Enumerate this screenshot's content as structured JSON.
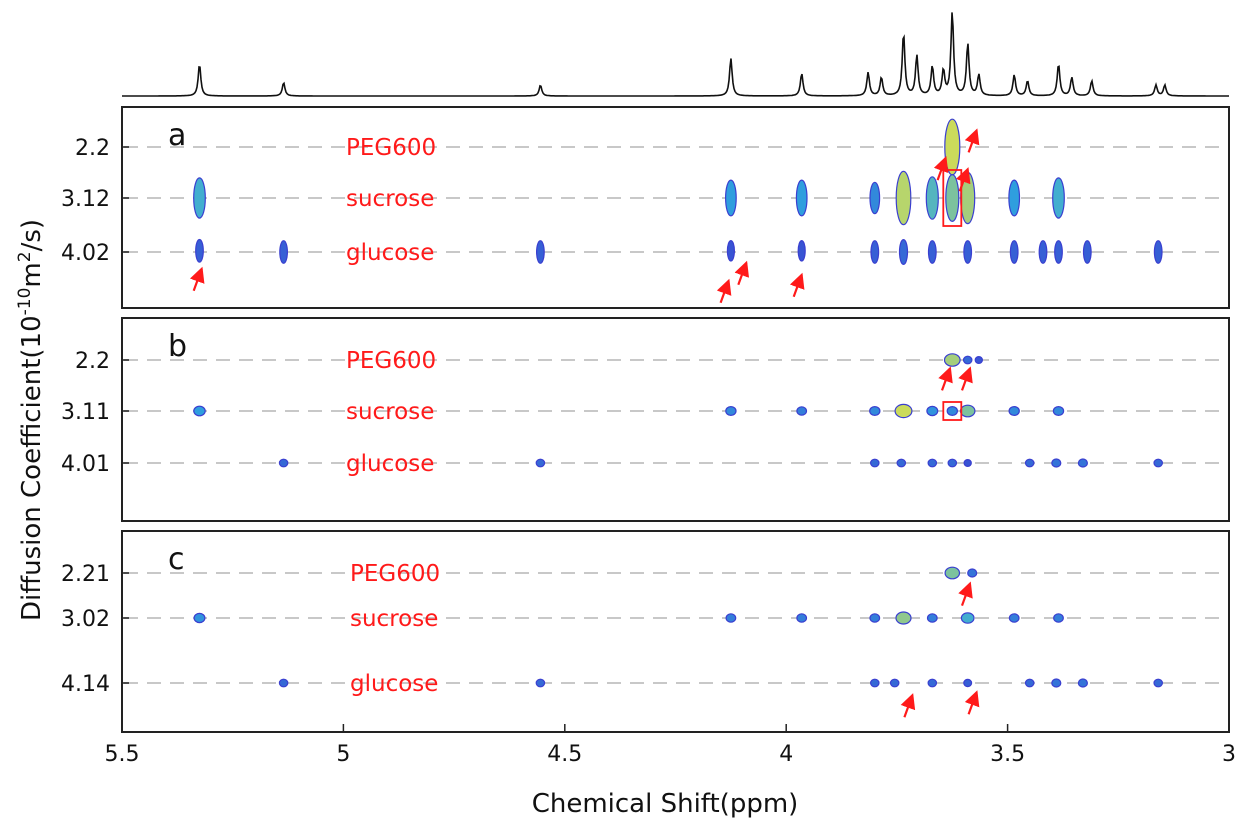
{
  "chart_data": {
    "type": "scatter",
    "subtype": "2D DOSY contour map with 1D spectrum projection",
    "xlabel": "Chemical Shift(ppm)",
    "ylabel_prefix": "Diffusion Coefficient(10",
    "ylabel_exp1": "-10",
    "ylabel_mid": "m",
    "ylabel_exp2": "2",
    "ylabel_suffix": "/s)",
    "x_reversed": true,
    "xlim": [
      5.5,
      3.0
    ],
    "x_ticks": [
      5.5,
      5.0,
      4.5,
      4.0,
      3.5,
      3.0
    ],
    "x_tick_labels": [
      "5.5",
      "5",
      "4.5",
      "4",
      "3.5",
      "3"
    ],
    "colors": {
      "spot_low": "#3a3fd0",
      "spot_mid": "#2ea8e0",
      "spot_high": "#f2e83a",
      "annotation": "#ff1a1a",
      "gridline": "#c8c8c8"
    },
    "spectrum_peaks": [
      {
        "x": 5.325,
        "height": 0.38
      },
      {
        "x": 5.135,
        "height": 0.16
      },
      {
        "x": 4.555,
        "height": 0.13
      },
      {
        "x": 4.125,
        "height": 0.45
      },
      {
        "x": 3.965,
        "height": 0.27
      },
      {
        "x": 3.815,
        "height": 0.28
      },
      {
        "x": 3.785,
        "height": 0.22
      },
      {
        "x": 3.735,
        "height": 0.75
      },
      {
        "x": 3.705,
        "height": 0.48
      },
      {
        "x": 3.67,
        "height": 0.35
      },
      {
        "x": 3.645,
        "height": 0.3
      },
      {
        "x": 3.625,
        "height": 1.0
      },
      {
        "x": 3.59,
        "height": 0.62
      },
      {
        "x": 3.565,
        "height": 0.25
      },
      {
        "x": 3.485,
        "height": 0.25
      },
      {
        "x": 3.455,
        "height": 0.18
      },
      {
        "x": 3.385,
        "height": 0.38
      },
      {
        "x": 3.355,
        "height": 0.22
      },
      {
        "x": 3.31,
        "height": 0.18
      },
      {
        "x": 3.165,
        "height": 0.13
      },
      {
        "x": 3.145,
        "height": 0.13
      }
    ],
    "panels": [
      {
        "label": "a",
        "y_ticks": [
          2.2,
          3.12,
          4.02
        ],
        "y_tick_labels": [
          "2.2",
          "3.12",
          "4.02"
        ],
        "components": [
          {
            "name": "PEG600",
            "D": 2.2
          },
          {
            "name": "sucrose",
            "D": 3.12
          },
          {
            "name": "glucose",
            "D": 4.02
          }
        ],
        "spots": [
          {
            "x": 5.325,
            "D": 3.12,
            "intensity": 0.55
          },
          {
            "x": 5.325,
            "D": 4.0,
            "intensity": 0.15
          },
          {
            "x": 5.135,
            "D": 4.02,
            "intensity": 0.15
          },
          {
            "x": 4.555,
            "D": 4.02,
            "intensity": 0.15
          },
          {
            "x": 4.125,
            "D": 3.12,
            "intensity": 0.45
          },
          {
            "x": 4.125,
            "D": 4.0,
            "intensity": 0.1
          },
          {
            "x": 3.965,
            "D": 3.12,
            "intensity": 0.45
          },
          {
            "x": 3.965,
            "D": 4.0,
            "intensity": 0.1
          },
          {
            "x": 3.8,
            "D": 3.12,
            "intensity": 0.35
          },
          {
            "x": 3.8,
            "D": 4.02,
            "intensity": 0.15
          },
          {
            "x": 3.735,
            "D": 3.12,
            "intensity": 0.85
          },
          {
            "x": 3.735,
            "D": 4.02,
            "intensity": 0.2
          },
          {
            "x": 3.67,
            "D": 3.12,
            "intensity": 0.6
          },
          {
            "x": 3.67,
            "D": 4.02,
            "intensity": 0.15
          },
          {
            "x": 3.625,
            "D": 2.2,
            "intensity": 0.9
          },
          {
            "x": 3.625,
            "D": 3.12,
            "intensity": 0.7
          },
          {
            "x": 3.59,
            "D": 3.12,
            "intensity": 0.8
          },
          {
            "x": 3.59,
            "D": 4.02,
            "intensity": 0.15
          },
          {
            "x": 3.485,
            "D": 3.12,
            "intensity": 0.45
          },
          {
            "x": 3.485,
            "D": 4.02,
            "intensity": 0.15
          },
          {
            "x": 3.42,
            "D": 4.02,
            "intensity": 0.15
          },
          {
            "x": 3.385,
            "D": 3.12,
            "intensity": 0.55
          },
          {
            "x": 3.385,
            "D": 4.02,
            "intensity": 0.15
          },
          {
            "x": 3.32,
            "D": 4.02,
            "intensity": 0.15
          },
          {
            "x": 3.16,
            "D": 4.02,
            "intensity": 0.15
          }
        ],
        "annotations": [
          {
            "type": "box",
            "x": 3.625,
            "D": 3.12
          },
          {
            "type": "arrow",
            "x": 5.32,
            "D": 4.3
          },
          {
            "type": "arrow",
            "x": 4.13,
            "D": 4.5
          },
          {
            "type": "arrow",
            "x": 4.09,
            "D": 4.2
          },
          {
            "type": "arrow",
            "x": 3.965,
            "D": 4.4
          },
          {
            "type": "arrow",
            "x": 3.64,
            "D": 2.4
          },
          {
            "type": "arrow",
            "x": 3.59,
            "D": 2.6
          },
          {
            "type": "arrow",
            "x": 3.57,
            "D": 1.9
          }
        ]
      },
      {
        "label": "b",
        "y_ticks": [
          2.2,
          3.11,
          4.01
        ],
        "y_tick_labels": [
          "2.2",
          "3.11",
          "4.01"
        ],
        "components": [
          {
            "name": "PEG600",
            "D": 2.2
          },
          {
            "name": "sucrose",
            "D": 3.11
          },
          {
            "name": "glucose",
            "D": 4.01
          }
        ],
        "spots": [
          {
            "x": 3.625,
            "D": 2.2,
            "intensity": 0.8
          },
          {
            "x": 3.59,
            "D": 2.2,
            "intensity": 0.2
          },
          {
            "x": 3.565,
            "D": 2.2,
            "intensity": 0.1
          },
          {
            "x": 5.325,
            "D": 3.11,
            "intensity": 0.45
          },
          {
            "x": 4.125,
            "D": 3.11,
            "intensity": 0.35
          },
          {
            "x": 3.965,
            "D": 3.11,
            "intensity": 0.3
          },
          {
            "x": 3.8,
            "D": 3.11,
            "intensity": 0.35
          },
          {
            "x": 3.735,
            "D": 3.11,
            "intensity": 0.9
          },
          {
            "x": 3.67,
            "D": 3.11,
            "intensity": 0.4
          },
          {
            "x": 3.625,
            "D": 3.11,
            "intensity": 0.35
          },
          {
            "x": 3.59,
            "D": 3.11,
            "intensity": 0.7
          },
          {
            "x": 3.485,
            "D": 3.11,
            "intensity": 0.35
          },
          {
            "x": 3.385,
            "D": 3.11,
            "intensity": 0.35
          },
          {
            "x": 5.135,
            "D": 4.01,
            "intensity": 0.2
          },
          {
            "x": 4.555,
            "D": 4.01,
            "intensity": 0.2
          },
          {
            "x": 3.8,
            "D": 4.01,
            "intensity": 0.2
          },
          {
            "x": 3.74,
            "D": 4.01,
            "intensity": 0.2
          },
          {
            "x": 3.67,
            "D": 4.01,
            "intensity": 0.2
          },
          {
            "x": 3.625,
            "D": 4.01,
            "intensity": 0.2
          },
          {
            "x": 3.59,
            "D": 4.01,
            "intensity": 0.1
          },
          {
            "x": 3.45,
            "D": 4.01,
            "intensity": 0.2
          },
          {
            "x": 3.39,
            "D": 4.01,
            "intensity": 0.25
          },
          {
            "x": 3.33,
            "D": 4.01,
            "intensity": 0.25
          },
          {
            "x": 3.16,
            "D": 4.01,
            "intensity": 0.2
          }
        ],
        "annotations": [
          {
            "type": "box",
            "x": 3.625,
            "D": 3.11
          },
          {
            "type": "arrow",
            "x": 3.63,
            "D": 2.35
          },
          {
            "type": "arrow",
            "x": 3.585,
            "D": 2.35
          }
        ]
      },
      {
        "label": "c",
        "y_ticks": [
          2.21,
          3.02,
          4.14
        ],
        "y_tick_labels": [
          "2.21",
          "3.02",
          "4.14"
        ],
        "components": [
          {
            "name": "PEG600",
            "D": 2.21
          },
          {
            "name": "sucrose",
            "D": 3.02
          },
          {
            "name": "glucose",
            "D": 4.14
          }
        ],
        "spots": [
          {
            "x": 3.625,
            "D": 2.21,
            "intensity": 0.7
          },
          {
            "x": 3.58,
            "D": 2.21,
            "intensity": 0.25
          },
          {
            "x": 5.325,
            "D": 3.02,
            "intensity": 0.4
          },
          {
            "x": 4.125,
            "D": 3.02,
            "intensity": 0.3
          },
          {
            "x": 3.965,
            "D": 3.02,
            "intensity": 0.3
          },
          {
            "x": 3.8,
            "D": 3.02,
            "intensity": 0.3
          },
          {
            "x": 3.735,
            "D": 3.02,
            "intensity": 0.75
          },
          {
            "x": 3.67,
            "D": 3.02,
            "intensity": 0.3
          },
          {
            "x": 3.59,
            "D": 3.02,
            "intensity": 0.55
          },
          {
            "x": 3.485,
            "D": 3.02,
            "intensity": 0.3
          },
          {
            "x": 3.385,
            "D": 3.02,
            "intensity": 0.3
          },
          {
            "x": 5.135,
            "D": 4.14,
            "intensity": 0.2
          },
          {
            "x": 4.555,
            "D": 4.14,
            "intensity": 0.2
          },
          {
            "x": 3.8,
            "D": 4.14,
            "intensity": 0.2
          },
          {
            "x": 3.755,
            "D": 4.14,
            "intensity": 0.2
          },
          {
            "x": 3.67,
            "D": 4.14,
            "intensity": 0.2
          },
          {
            "x": 3.59,
            "D": 4.14,
            "intensity": 0.15
          },
          {
            "x": 3.45,
            "D": 4.14,
            "intensity": 0.2
          },
          {
            "x": 3.39,
            "D": 4.14,
            "intensity": 0.25
          },
          {
            "x": 3.33,
            "D": 4.14,
            "intensity": 0.25
          },
          {
            "x": 3.16,
            "D": 4.14,
            "intensity": 0.2
          }
        ],
        "annotations": [
          {
            "type": "arrow",
            "x": 3.585,
            "D": 2.4
          },
          {
            "type": "arrow",
            "x": 3.715,
            "D": 4.35
          },
          {
            "type": "arrow",
            "x": 3.57,
            "D": 4.3
          }
        ]
      }
    ]
  }
}
